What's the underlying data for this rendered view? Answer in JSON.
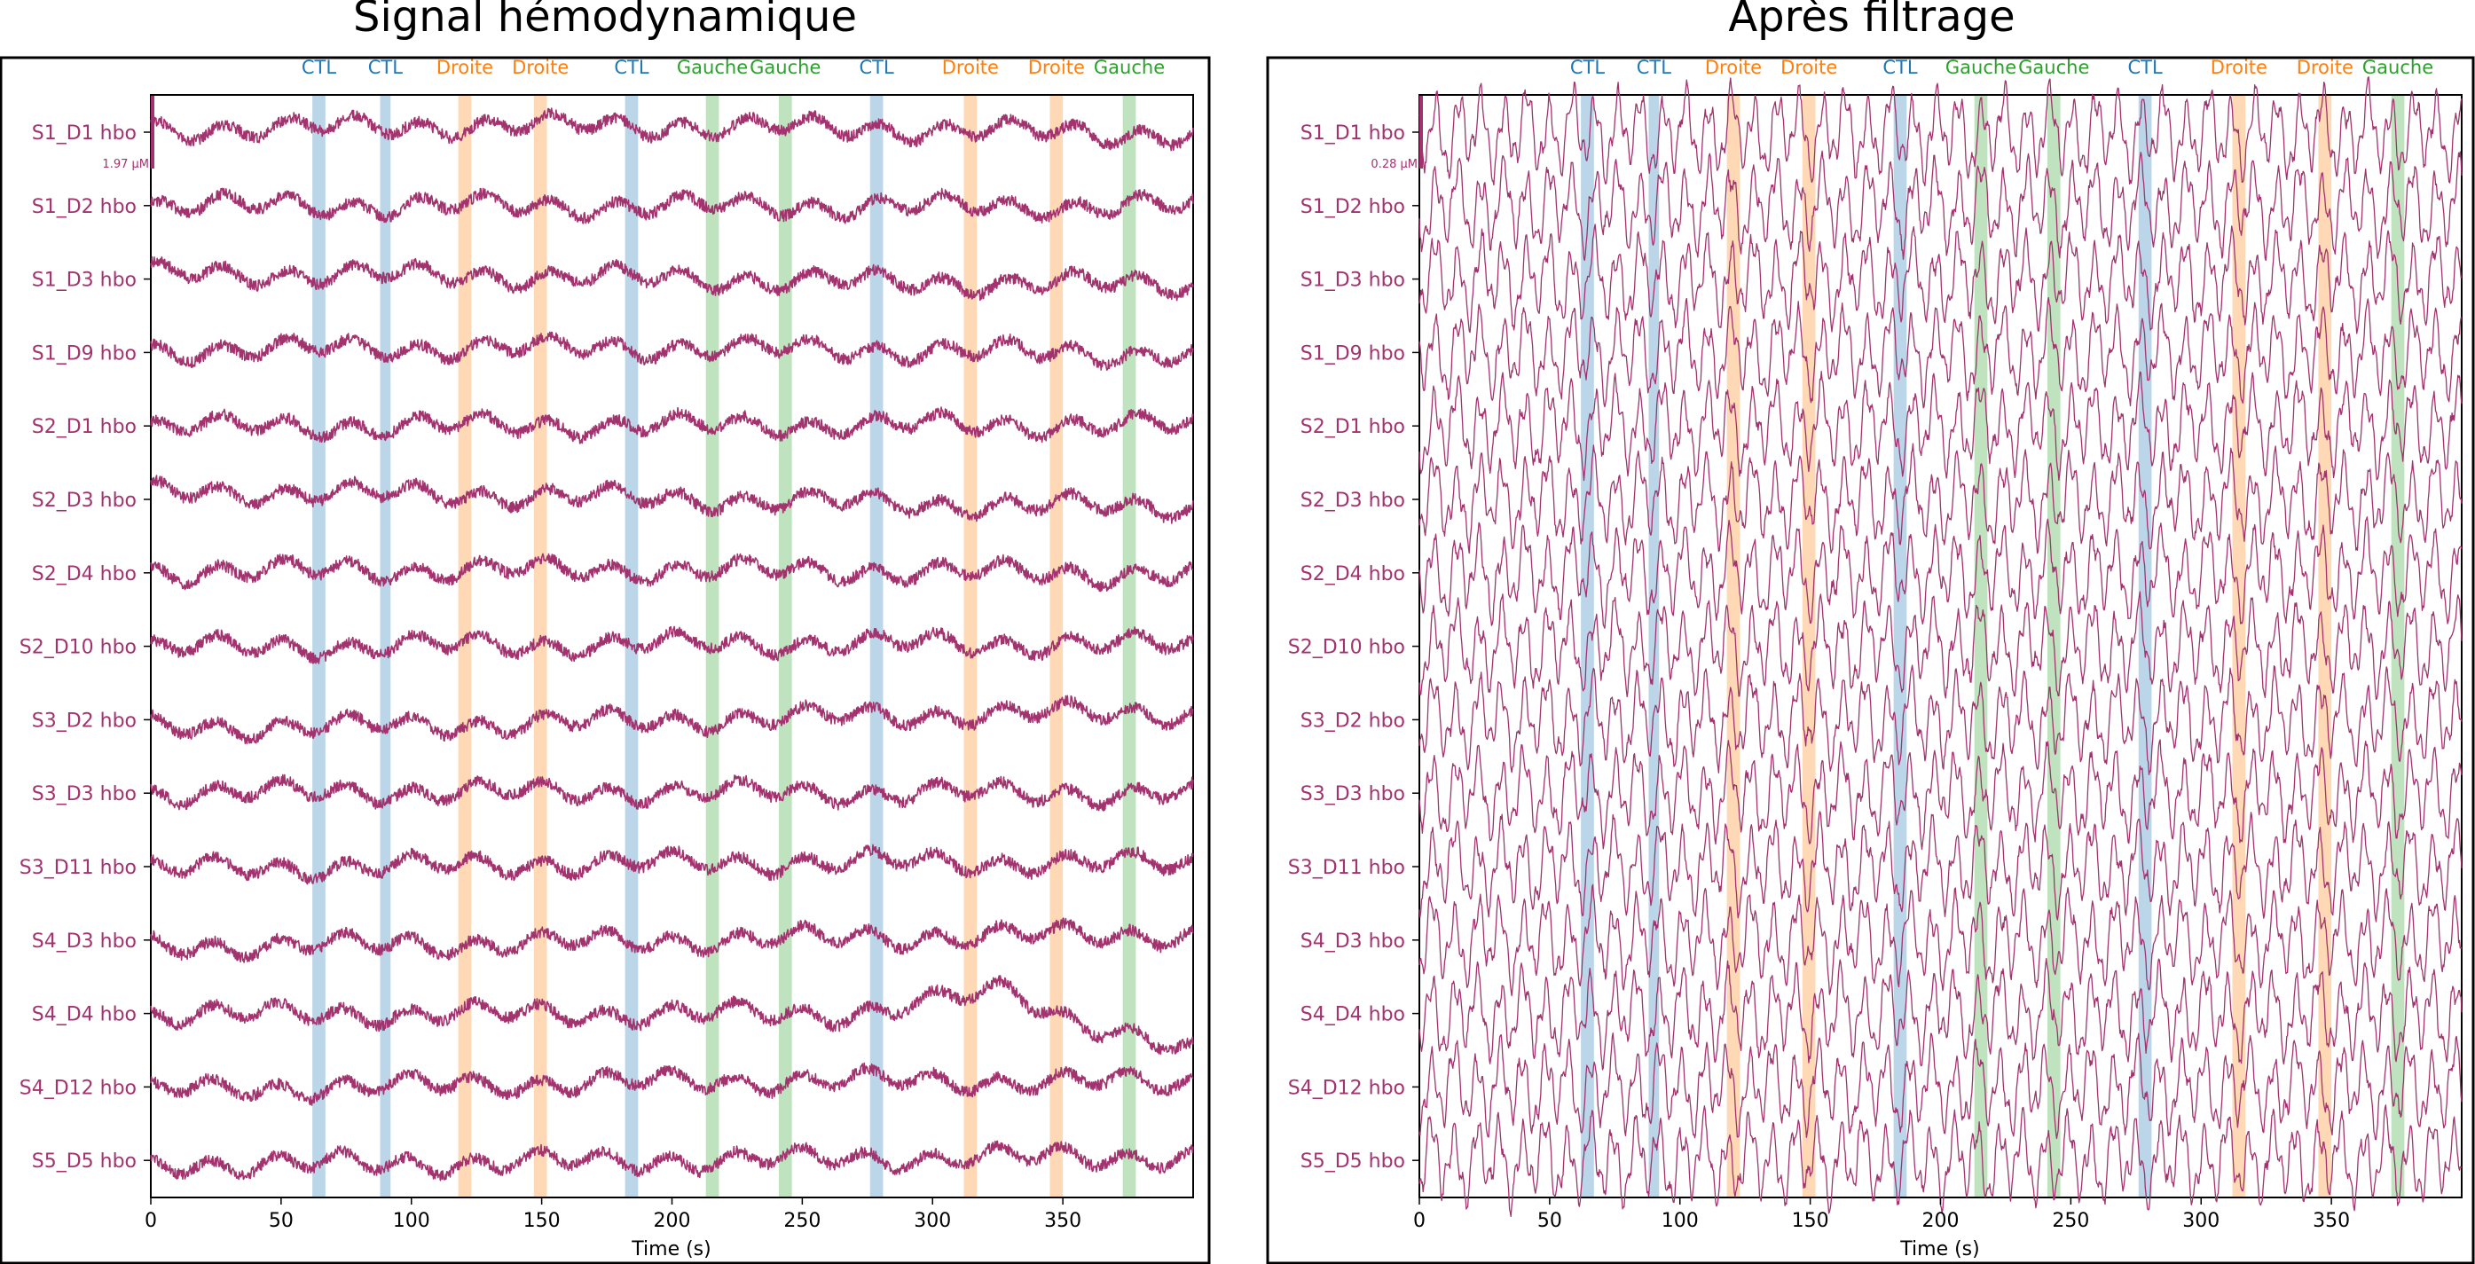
{
  "colors": {
    "trace": "#a3336f",
    "channel_label": "#a3336f",
    "CTL": "#1f77b4",
    "Droite": "#ff7f0e",
    "Gauche": "#2ca02c"
  },
  "chart_data": [
    {
      "type": "line",
      "title": "Signal hémodynamique",
      "xlabel": "Time (s)",
      "ylabel": "",
      "xlim": [
        0,
        400
      ],
      "xticks": [
        0,
        50,
        100,
        150,
        200,
        250,
        300,
        350
      ],
      "scale_bar_label": "1.97 µM",
      "channels": [
        "S1_D1 hbo",
        "S1_D2 hbo",
        "S1_D3 hbo",
        "S1_D9 hbo",
        "S2_D1 hbo",
        "S2_D3 hbo",
        "S2_D4 hbo",
        "S2_D10 hbo",
        "S3_D2 hbo",
        "S3_D3 hbo",
        "S3_D11 hbo",
        "S4_D3 hbo",
        "S4_D4 hbo",
        "S4_D12 hbo",
        "S5_D5 hbo"
      ],
      "annotations": [
        {
          "label": "CTL",
          "start": 62,
          "end": 67
        },
        {
          "label": "CTL",
          "start": 88,
          "end": 92
        },
        {
          "label": "Droite",
          "start": 118,
          "end": 123
        },
        {
          "label": "Droite",
          "start": 147,
          "end": 152
        },
        {
          "label": "CTL",
          "start": 182,
          "end": 187
        },
        {
          "label": "Gauche",
          "start": 213,
          "end": 218
        },
        {
          "label": "Gauche",
          "start": 241,
          "end": 246
        },
        {
          "label": "CTL",
          "start": 276,
          "end": 281
        },
        {
          "label": "Droite",
          "start": 312,
          "end": 317
        },
        {
          "label": "Droite",
          "start": 345,
          "end": 350
        },
        {
          "label": "Gauche",
          "start": 373,
          "end": 378
        }
      ],
      "legend": "none",
      "grid": false
    },
    {
      "type": "line",
      "title": "Après filtrage",
      "xlabel": "Time (s)",
      "ylabel": "",
      "xlim": [
        0,
        400
      ],
      "xticks": [
        0,
        50,
        100,
        150,
        200,
        250,
        300,
        350
      ],
      "scale_bar_label": "0.28 µM",
      "channels": [
        "S1_D1 hbo",
        "S1_D2 hbo",
        "S1_D3 hbo",
        "S1_D9 hbo",
        "S2_D1 hbo",
        "S2_D3 hbo",
        "S2_D4 hbo",
        "S2_D10 hbo",
        "S3_D2 hbo",
        "S3_D3 hbo",
        "S3_D11 hbo",
        "S4_D3 hbo",
        "S4_D4 hbo",
        "S4_D12 hbo",
        "S5_D5 hbo"
      ],
      "annotations": [
        {
          "label": "CTL",
          "start": 62,
          "end": 67
        },
        {
          "label": "CTL",
          "start": 88,
          "end": 92
        },
        {
          "label": "Droite",
          "start": 118,
          "end": 123
        },
        {
          "label": "Droite",
          "start": 147,
          "end": 152
        },
        {
          "label": "CTL",
          "start": 182,
          "end": 187
        },
        {
          "label": "Gauche",
          "start": 213,
          "end": 218
        },
        {
          "label": "Gauche",
          "start": 241,
          "end": 246
        },
        {
          "label": "CTL",
          "start": 276,
          "end": 281
        },
        {
          "label": "Droite",
          "start": 312,
          "end": 317
        },
        {
          "label": "Droite",
          "start": 345,
          "end": 350
        },
        {
          "label": "Gauche",
          "start": 373,
          "end": 378
        }
      ],
      "legend": "none",
      "grid": false
    }
  ]
}
